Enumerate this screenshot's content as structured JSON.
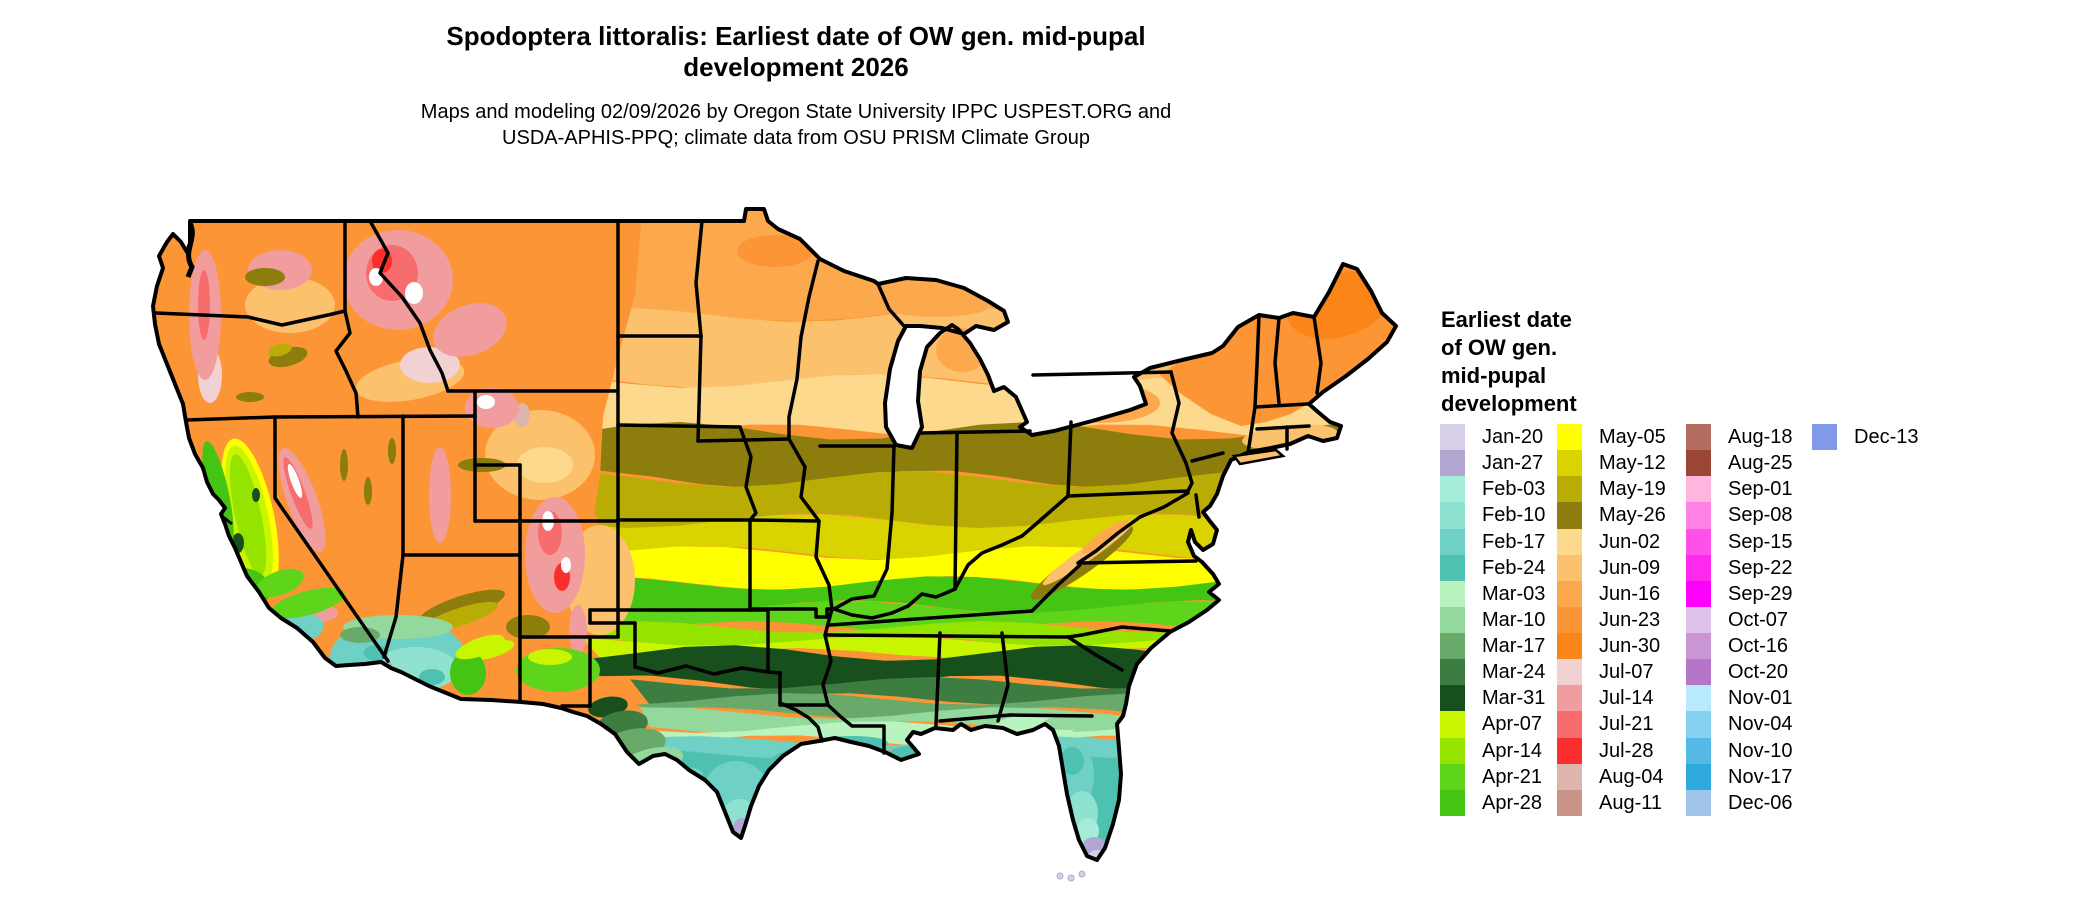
{
  "header": {
    "title_line1": "Spodoptera littoralis: Earliest date of OW gen. mid-pupal",
    "title_line2": "development 2026",
    "subtitle_line1": "Maps and modeling 02/09/2026 by Oregon State University IPPC USPEST.ORG and",
    "subtitle_line2": "USDA-APHIS-PPQ; climate data from OSU PRISM Climate Group"
  },
  "legend": {
    "title_lines": [
      "Earliest date",
      "of OW gen.",
      "mid-pupal",
      "development"
    ],
    "columns": [
      {
        "entries": [
          {
            "label": "Jan-20",
            "color": "#d7cfe7"
          },
          {
            "label": "Jan-27",
            "color": "#b1a7d2"
          },
          {
            "label": "Feb-03",
            "color": "#a5ecd9"
          },
          {
            "label": "Feb-10",
            "color": "#8fe2cf"
          },
          {
            "label": "Feb-17",
            "color": "#6fd1c5"
          },
          {
            "label": "Feb-24",
            "color": "#4fc1b1"
          },
          {
            "label": "Mar-03",
            "color": "#b9f4c0"
          },
          {
            "label": "Mar-10",
            "color": "#93d99e"
          },
          {
            "label": "Mar-17",
            "color": "#69aa6b"
          },
          {
            "label": "Mar-24",
            "color": "#3d7d41"
          },
          {
            "label": "Mar-31",
            "color": "#17501c"
          },
          {
            "label": "Apr-07",
            "color": "#c9f501"
          },
          {
            "label": "Apr-14",
            "color": "#95e400"
          },
          {
            "label": "Apr-21",
            "color": "#5ed41a"
          },
          {
            "label": "Apr-28",
            "color": "#45c513"
          }
        ]
      },
      {
        "entries": [
          {
            "label": "May-05",
            "color": "#ffff00"
          },
          {
            "label": "May-12",
            "color": "#d9d400"
          },
          {
            "label": "May-19",
            "color": "#b9ad05"
          },
          {
            "label": "May-26",
            "color": "#8d7d0d"
          },
          {
            "label": "Jun-02",
            "color": "#fcd98d"
          },
          {
            "label": "Jun-09",
            "color": "#fcc16d"
          },
          {
            "label": "Jun-16",
            "color": "#fca94d"
          },
          {
            "label": "Jun-23",
            "color": "#fc9535"
          },
          {
            "label": "Jun-30",
            "color": "#fc8519"
          },
          {
            "label": "Jul-07",
            "color": "#f1d1d1"
          },
          {
            "label": "Jul-14",
            "color": "#f29d9d"
          },
          {
            "label": "Jul-21",
            "color": "#f76d6d"
          },
          {
            "label": "Jul-28",
            "color": "#fb2d2d"
          },
          {
            "label": "Aug-04",
            "color": "#ddb5ad"
          },
          {
            "label": "Aug-11",
            "color": "#c99589"
          }
        ]
      },
      {
        "entries": [
          {
            "label": "Aug-18",
            "color": "#b56d61"
          },
          {
            "label": "Aug-25",
            "color": "#9b4533"
          },
          {
            "label": "Sep-01",
            "color": "#ffb5dd"
          },
          {
            "label": "Sep-08",
            "color": "#ff81e5"
          },
          {
            "label": "Sep-15",
            "color": "#ff51e9"
          },
          {
            "label": "Sep-22",
            "color": "#ff29ed"
          },
          {
            "label": "Sep-29",
            "color": "#fb01fb"
          },
          {
            "label": "Oct-07",
            "color": "#ddc1e9"
          },
          {
            "label": "Oct-16",
            "color": "#c995d5"
          },
          {
            "label": "Oct-20",
            "color": "#b575c9"
          },
          {
            "label": "Nov-01",
            "color": "#b9e9fd"
          },
          {
            "label": "Nov-04",
            "color": "#85d1f1"
          },
          {
            "label": "Nov-10",
            "color": "#55b9e5"
          },
          {
            "label": "Nov-17",
            "color": "#2da9dd"
          },
          {
            "label": "Dec-06",
            "color": "#a1c5e9"
          }
        ]
      },
      {
        "entries": [
          {
            "label": "Dec-13",
            "color": "#8199e9"
          }
        ]
      }
    ]
  },
  "map": {
    "description": "CONUS choropleth of earliest date of overwintering generation mid-pupal development",
    "band_sequence_north_to_south": [
      "Jun-16",
      "Jun-09",
      "Jun-02",
      "May-26",
      "May-19",
      "May-12",
      "May-05",
      "Apr-28",
      "Apr-21",
      "Apr-14",
      "Apr-07",
      "Mar-31",
      "Mar-24",
      "Mar-17",
      "Mar-10",
      "Mar-03",
      "Feb-17",
      "Feb-24"
    ]
  }
}
